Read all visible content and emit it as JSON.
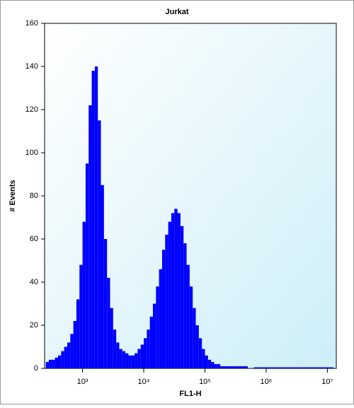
{
  "chart_data": {
    "type": "histogram",
    "title": "Jurkat",
    "x_label": "FL1-H",
    "y_label": "# Events",
    "x_scale": "log",
    "color": "#0000ff",
    "grid": false,
    "xlim": [
      240,
      14000000
    ],
    "ylim": [
      0,
      160
    ],
    "xticks": [
      {
        "value": 1000,
        "label": "10³"
      },
      {
        "value": 10000,
        "label": "10⁴"
      },
      {
        "value": 100000,
        "label": "10⁵"
      },
      {
        "value": 1000000,
        "label": "10⁶"
      },
      {
        "value": 10000000,
        "label": "10⁷"
      }
    ],
    "yticks": [
      0,
      20,
      40,
      60,
      80,
      100,
      120,
      140,
      160
    ],
    "bins": [
      251,
      282,
      316,
      355,
      398,
      447,
      501,
      562,
      631,
      708,
      794,
      891,
      1000,
      1122,
      1259,
      1413,
      1585,
      1778,
      1995,
      2239,
      2512,
      2818,
      3162,
      3548,
      3981,
      4467,
      5012,
      5623,
      6310,
      7079,
      7943,
      8913,
      10000,
      11220,
      12589,
      14125,
      15849,
      17783,
      19953,
      22387,
      25119,
      28184,
      31623,
      35481,
      39811,
      44668,
      50119,
      56234,
      63096,
      70795,
      79433,
      89125,
      100000,
      112202,
      125893,
      141254,
      158489,
      177828,
      199526,
      223872,
      251189,
      281838,
      316228,
      354813,
      398107,
      446684,
      501187,
      562341,
      630957,
      12589254
    ],
    "counts": [
      3,
      4,
      4,
      5,
      6,
      8,
      10,
      12,
      16,
      22,
      32,
      48,
      68,
      95,
      122,
      138,
      140,
      115,
      85,
      60,
      42,
      28,
      18,
      12,
      9,
      8,
      7,
      6,
      6,
      7,
      9,
      11,
      14,
      18,
      24,
      30,
      38,
      46,
      55,
      62,
      68,
      72,
      74,
      72,
      66,
      58,
      48,
      38,
      28,
      20,
      14,
      9,
      6,
      4,
      3,
      2,
      2,
      1,
      1,
      1,
      1,
      1,
      1,
      1,
      1,
      1,
      0,
      0,
      0.5
    ]
  }
}
